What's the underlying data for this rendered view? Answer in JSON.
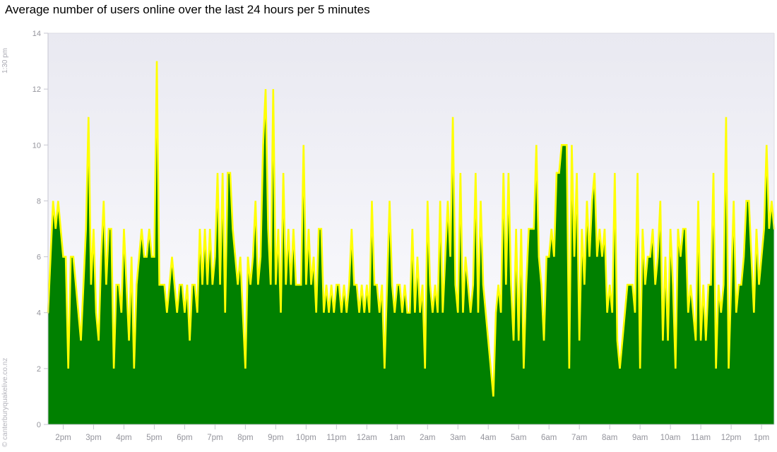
{
  "title": "Average number of users online over the last 24 hours per 5 minutes",
  "timestamp_label": "1:30 pm",
  "credit": "© canterburyquakelive.co.nz",
  "chart_data": {
    "type": "area",
    "title": "Average number of users online over the last 24 hours per 5 minutes",
    "x_start_label": "1:30 pm",
    "interval_minutes": 5,
    "x_tick_labels": [
      "2pm",
      "3pm",
      "4pm",
      "5pm",
      "6pm",
      "7pm",
      "8pm",
      "9pm",
      "10pm",
      "11pm",
      "12am",
      "1am",
      "2am",
      "3am",
      "4am",
      "5am",
      "6am",
      "7am",
      "8am",
      "9am",
      "10am",
      "11am",
      "12pm",
      "1pm"
    ],
    "y_ticks": [
      0,
      2,
      4,
      6,
      8,
      10,
      12,
      14
    ],
    "ylim": [
      0,
      14
    ],
    "grid": false,
    "legend": "none",
    "line_color": "#ffff00",
    "fill_color": "#008000",
    "plot_bg_top": "#e9e9f1",
    "plot_bg_bottom": "#ffffff",
    "axis_color": "#c6c6d0",
    "label_color": "#94949c",
    "values": [
      4,
      6,
      8,
      7,
      8,
      7,
      6,
      6,
      2,
      6,
      6,
      5,
      4,
      3,
      5,
      7,
      11,
      5,
      7,
      4,
      3,
      6,
      8,
      5,
      7,
      7,
      2,
      5,
      5,
      4,
      7,
      5,
      3,
      6,
      2,
      5,
      6,
      7,
      6,
      6,
      7,
      6,
      6,
      13,
      5,
      5,
      5,
      4,
      5,
      6,
      5,
      4,
      5,
      5,
      4,
      5,
      3,
      5,
      5,
      4,
      7,
      5,
      7,
      5,
      7,
      5,
      6,
      9,
      5,
      9,
      4,
      9,
      9,
      7,
      6,
      5,
      6,
      4,
      2,
      6,
      5,
      6,
      8,
      5,
      6,
      10,
      12,
      7,
      5,
      12,
      5,
      7,
      4,
      9,
      5,
      7,
      5,
      7,
      5,
      5,
      5,
      10,
      5,
      7,
      5,
      6,
      4,
      7,
      7,
      4,
      5,
      4,
      5,
      4,
      5,
      5,
      4,
      5,
      4,
      5,
      7,
      5,
      5,
      4,
      5,
      4,
      5,
      4,
      8,
      5,
      5,
      4,
      5,
      2,
      5,
      8,
      5,
      4,
      5,
      5,
      4,
      5,
      4,
      4,
      7,
      4,
      6,
      4,
      5,
      2,
      8,
      5,
      4,
      5,
      4,
      8,
      4,
      6,
      8,
      6,
      11,
      5,
      4,
      9,
      4,
      6,
      5,
      4,
      5,
      9,
      4,
      8,
      5,
      4,
      3,
      2,
      1,
      4,
      5,
      4,
      9,
      5,
      9,
      5,
      3,
      7,
      3,
      7,
      2,
      5,
      7,
      7,
      7,
      10,
      6,
      5,
      3,
      6,
      6,
      7,
      6,
      9,
      9,
      10,
      10,
      10,
      2,
      10,
      6,
      9,
      3,
      7,
      5,
      8,
      6,
      8,
      9,
      6,
      7,
      6,
      7,
      4,
      5,
      4,
      9,
      3,
      2,
      3,
      4,
      5,
      5,
      5,
      4,
      9,
      2,
      7,
      5,
      6,
      6,
      7,
      5,
      6,
      8,
      3,
      6,
      3,
      7,
      5,
      2,
      7,
      6,
      7,
      7,
      4,
      5,
      4,
      3,
      8,
      3,
      5,
      3,
      5,
      5,
      9,
      2,
      5,
      4,
      5,
      11,
      2,
      5,
      8,
      4,
      5,
      5,
      6,
      8,
      8,
      6,
      4,
      7,
      5,
      6,
      7,
      10,
      7,
      8,
      7
    ]
  }
}
